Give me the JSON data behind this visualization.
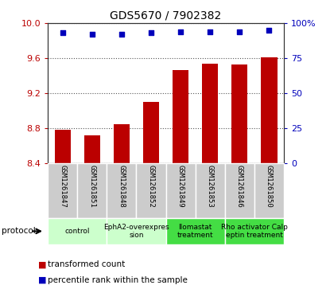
{
  "title": "GDS5670 / 7902382",
  "samples": [
    "GSM1261847",
    "GSM1261851",
    "GSM1261848",
    "GSM1261852",
    "GSM1261849",
    "GSM1261853",
    "GSM1261846",
    "GSM1261850"
  ],
  "bar_values": [
    8.78,
    8.72,
    8.85,
    9.1,
    9.46,
    9.54,
    9.53,
    9.61
  ],
  "dot_values": [
    93,
    92,
    92,
    93,
    94,
    94,
    94,
    95
  ],
  "bar_color": "#bb0000",
  "dot_color": "#0000bb",
  "ylim_left": [
    8.4,
    10.0
  ],
  "ylim_right": [
    0,
    100
  ],
  "yticks_left": [
    8.4,
    8.8,
    9.2,
    9.6,
    10.0
  ],
  "yticks_right": [
    0,
    25,
    50,
    75,
    100
  ],
  "yticklabels_right": [
    "0",
    "25",
    "50",
    "75",
    "100%"
  ],
  "groups": [
    {
      "label": "control",
      "indices": [
        0,
        1
      ],
      "color": "#ccffcc"
    },
    {
      "label": "EphA2-overexpres\nsion",
      "indices": [
        2,
        3
      ],
      "color": "#ccffcc"
    },
    {
      "label": "Ilomastat\ntreatment",
      "indices": [
        4,
        5
      ],
      "color": "#44dd44"
    },
    {
      "label": "Rho activator Calp\neptin treatment",
      "indices": [
        6,
        7
      ],
      "color": "#44dd44"
    }
  ],
  "protocol_label": "protocol",
  "legend_bar": "transformed count",
  "legend_dot": "percentile rank within the sample",
  "grid_color": "#555555",
  "sample_bg_color": "#cccccc",
  "bar_width": 0.55
}
